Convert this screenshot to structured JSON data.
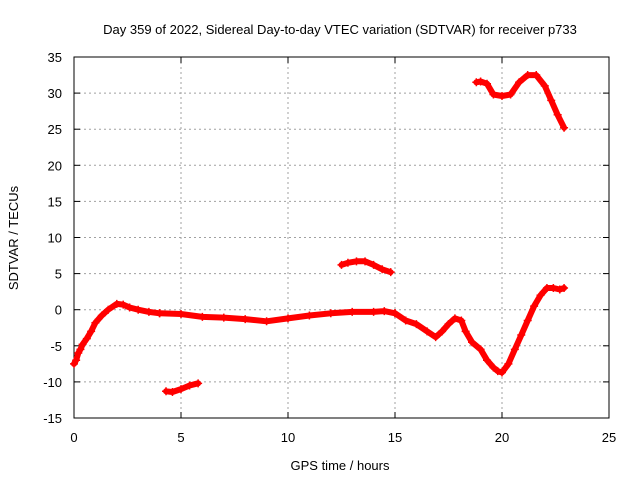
{
  "chart_data": {
    "type": "scatter",
    "title": "Day 359 of 2022, Sidereal Day-to-day VTEC variation (SDTVAR) for receiver p733",
    "xlabel": "GPS time / hours",
    "ylabel": "SDTVAR / TECUs",
    "xlim": [
      0,
      25
    ],
    "ylim": [
      -15,
      35
    ],
    "xticks": [
      0,
      5,
      10,
      15,
      20,
      25
    ],
    "yticks": [
      -15,
      -10,
      -5,
      0,
      5,
      10,
      15,
      20,
      25,
      30,
      35
    ],
    "grid": true,
    "marker": "+",
    "color": "#ff0000",
    "series": [
      {
        "name": "segment-main-start",
        "x": [
          0.0,
          0.1,
          0.2,
          0.3,
          0.4,
          0.6,
          0.8,
          1.0,
          1.3,
          1.6,
          2.0,
          2.3,
          2.6,
          3.0,
          3.5,
          4.0
        ],
        "y": [
          -7.5,
          -7.0,
          -6.0,
          -5.5,
          -4.8,
          -4.0,
          -3.0,
          -1.8,
          -0.8,
          0.0,
          0.8,
          0.7,
          0.3,
          0.0,
          -0.3,
          -0.5
        ]
      },
      {
        "name": "segment-main-mid",
        "x": [
          4.0,
          5.0,
          6.0,
          7.0,
          8.0,
          9.0,
          10.0,
          11.0,
          12.0,
          13.0,
          14.0,
          14.5,
          15.0
        ],
        "y": [
          -0.5,
          -0.6,
          -1.0,
          -1.1,
          -1.3,
          -1.6,
          -1.2,
          -0.8,
          -0.5,
          -0.3,
          -0.3,
          -0.2,
          -0.5
        ]
      },
      {
        "name": "segment-main-end",
        "x": [
          15.0,
          15.5,
          16.0,
          16.5,
          16.9,
          17.2,
          17.5,
          17.8,
          18.1,
          18.3,
          18.6,
          19.0,
          19.3,
          19.6,
          19.8,
          20.0,
          20.3,
          20.6,
          20.9,
          21.2,
          21.5,
          21.8,
          22.1,
          22.4,
          22.7,
          22.9
        ],
        "y": [
          -0.5,
          -1.5,
          -2.0,
          -3.0,
          -3.8,
          -3.0,
          -2.0,
          -1.2,
          -1.5,
          -3.0,
          -4.5,
          -5.5,
          -7.0,
          -8.0,
          -8.5,
          -8.7,
          -7.5,
          -5.5,
          -3.5,
          -1.5,
          0.5,
          2.0,
          3.0,
          3.0,
          2.8,
          3.0
        ]
      },
      {
        "name": "segment-low",
        "x": [
          4.3,
          4.6,
          5.0,
          5.4,
          5.8
        ],
        "y": [
          -11.3,
          -11.4,
          -11.0,
          -10.5,
          -10.2
        ]
      },
      {
        "name": "segment-mid-high",
        "x": [
          12.5,
          12.8,
          13.2,
          13.6,
          14.0,
          14.4,
          14.8
        ],
        "y": [
          6.2,
          6.5,
          6.7,
          6.7,
          6.2,
          5.6,
          5.2
        ]
      },
      {
        "name": "segment-top",
        "x": [
          18.8,
          19.0,
          19.3,
          19.6,
          20.0,
          20.4,
          20.8,
          21.2,
          21.6,
          22.0,
          22.3,
          22.6,
          22.9
        ],
        "y": [
          31.5,
          31.6,
          31.3,
          29.8,
          29.6,
          29.8,
          31.5,
          32.5,
          32.5,
          31.0,
          29.0,
          27.0,
          25.2
        ]
      }
    ]
  }
}
